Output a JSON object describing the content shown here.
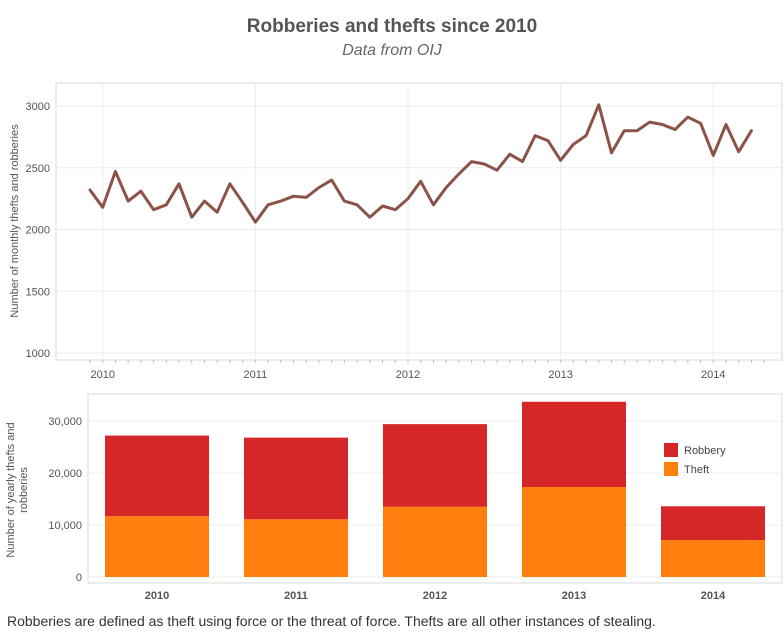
{
  "title": "Robberies and thefts since 2010",
  "subtitle": "Data from OIJ",
  "footnote": "Robberies are defined as theft using force or the threat of force. Thefts are all other instances of stealing.",
  "chart_data": [
    {
      "type": "line",
      "ylabel": "Number of monthly thefts and robberies",
      "ylim": [
        1000,
        3100
      ],
      "yticks": [
        1000,
        1500,
        2000,
        2500,
        3000
      ],
      "xticks": [
        "2010",
        "2011",
        "2012",
        "2013",
        "2014"
      ],
      "x_start": "2009-12",
      "series": [
        {
          "color": "#8c5248",
          "values": [
            2320,
            2180,
            2470,
            2230,
            2310,
            2160,
            2200,
            2370,
            2100,
            2230,
            2140,
            2370,
            2220,
            2060,
            2200,
            2230,
            2270,
            2260,
            2340,
            2400,
            2230,
            2200,
            2100,
            2190,
            2160,
            2250,
            2390,
            2200,
            2340,
            2450,
            2550,
            2530,
            2480,
            2610,
            2550,
            2760,
            2720,
            2560,
            2690,
            2760,
            3010,
            2620,
            2800,
            2800,
            2870,
            2850,
            2810,
            2910,
            2860,
            2600,
            2850,
            2630,
            2800
          ]
        }
      ]
    },
    {
      "type": "bar",
      "stacked": true,
      "ylabel": "Number of yearly thefts and robberies",
      "ylim": [
        0,
        35000
      ],
      "yticks": [
        "0",
        "10,000",
        "20,000",
        "30,000"
      ],
      "ytick_values": [
        0,
        10000,
        20000,
        30000
      ],
      "categories": [
        "2010",
        "2011",
        "2012",
        "2013",
        "2014"
      ],
      "legend_position": "right",
      "series": [
        {
          "name": "Theft",
          "color": "#ff7f0e",
          "values": [
            11700,
            11100,
            13500,
            17300,
            7100
          ]
        },
        {
          "name": "Robbery",
          "color": "#d62728",
          "values": [
            15500,
            15700,
            15900,
            16400,
            6500
          ]
        }
      ],
      "legend_order": [
        "Robbery",
        "Theft"
      ]
    }
  ]
}
